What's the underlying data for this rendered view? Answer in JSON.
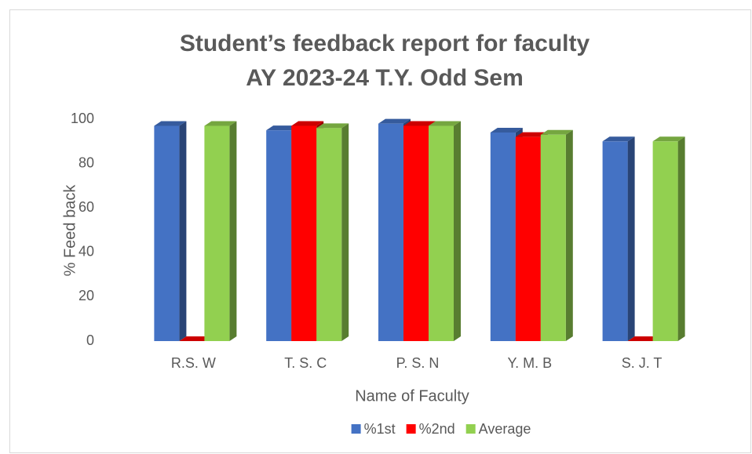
{
  "chart_data": {
    "type": "bar3d",
    "title": [
      "Student’s feedback report for faculty",
      "AY 2023-24 T.Y. Odd Sem"
    ],
    "xlabel": "Name of Faculty",
    "ylabel": "% Feed back",
    "categories": [
      "R.S. W",
      "T. S. C",
      "P. S. N",
      "Y. M. B",
      "S. J. T"
    ],
    "series": [
      {
        "name": "%1st",
        "color": "#4472c4",
        "values": [
          97,
          95,
          98,
          94,
          90
        ]
      },
      {
        "name": "%2nd",
        "color": "#ff0000",
        "values": [
          0,
          97,
          97,
          92,
          0
        ]
      },
      {
        "name": "Average",
        "color": "#92d050",
        "values": [
          97,
          96,
          97,
          93,
          90
        ]
      }
    ],
    "ylim": [
      0,
      100
    ],
    "yticks": [
      0,
      20,
      40,
      60,
      80,
      100
    ],
    "legend": "bottom"
  }
}
